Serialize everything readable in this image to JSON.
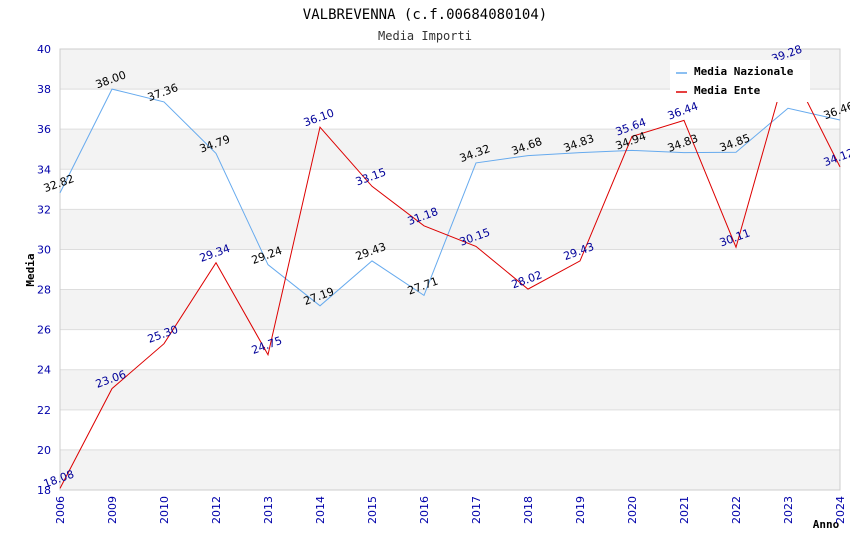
{
  "chart_data": {
    "type": "line",
    "title": "VALBREVENNA (c.f.00684080104)",
    "subtitle": "Media Importi",
    "ylabel": "Media",
    "xlabel": "Anno",
    "ylim": [
      18,
      40
    ],
    "yticks": [
      "18",
      "20",
      "22",
      "24",
      "26",
      "28",
      "30",
      "32",
      "34",
      "36",
      "38",
      "40"
    ],
    "categories": [
      "2006",
      "2009",
      "2010",
      "2012",
      "2013",
      "2014",
      "2015",
      "2016",
      "2017",
      "2018",
      "2019",
      "2020",
      "2021",
      "2022",
      "2023",
      "2024"
    ],
    "series": [
      {
        "name": "Media Nazionale",
        "color": "#66aaee",
        "values": [
          32.82,
          38.0,
          37.36,
          34.79,
          29.24,
          27.19,
          29.43,
          27.71,
          34.32,
          34.68,
          34.83,
          34.94,
          34.83,
          34.85,
          37.04,
          36.46
        ],
        "labels": [
          "32.82",
          "38.00",
          "37.36",
          "34.79",
          "29.24",
          "27.19",
          "29.43",
          "27.71",
          "34.32",
          "34.68",
          "34.83",
          "34.94",
          "34.83",
          "34.85",
          null,
          "36.46"
        ]
      },
      {
        "name": "Media Ente",
        "color": "#dd0000",
        "values": [
          18.08,
          23.06,
          25.3,
          29.34,
          24.75,
          36.1,
          33.15,
          31.18,
          30.15,
          28.02,
          29.43,
          35.64,
          36.44,
          30.11,
          39.28,
          34.12
        ],
        "labels": [
          "18.08",
          "23.06",
          "25.30",
          "29.34",
          "24.75",
          "36.10",
          "33.15",
          "31.18",
          "30.15",
          "28.02",
          "29.43",
          "35.64",
          "36.44",
          "30.11",
          "39.28",
          "34.12"
        ]
      }
    ],
    "grid": true,
    "legend": "top-right"
  }
}
